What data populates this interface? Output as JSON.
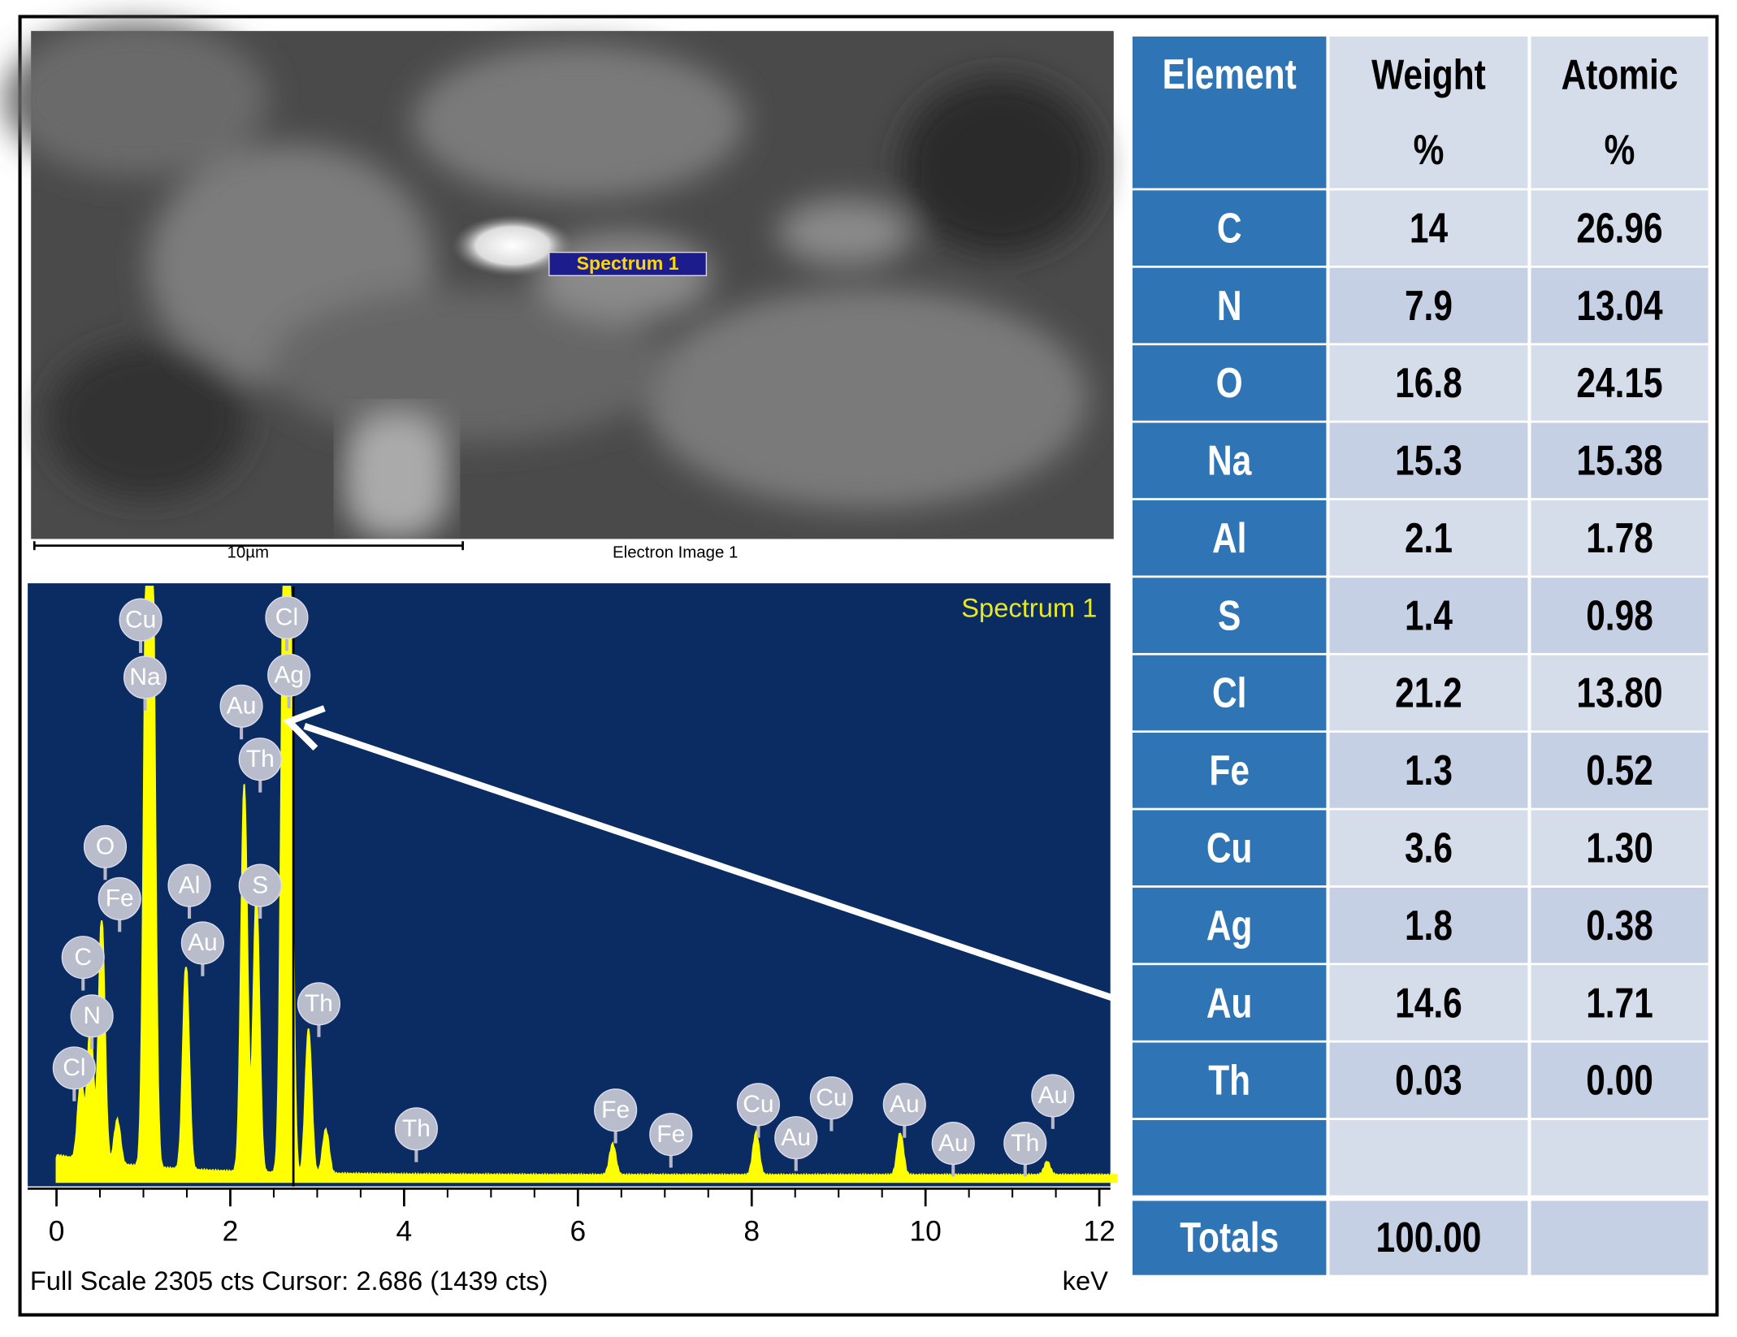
{
  "electron_image": {
    "spectrum_label": "Spectrum 1",
    "scale_bar": "10µm",
    "caption": "Electron Image 1"
  },
  "spectrum": {
    "title": "Spectrum 1",
    "x_ticks": [
      0,
      2,
      4,
      6,
      8,
      10,
      12
    ],
    "unit": "keV",
    "footer": "Full Scale 2305 cts Cursor: 2.686  (1439 cts)",
    "peak_labels": [
      "Cu",
      "Na",
      "Cl",
      "Ag",
      "Au",
      "Th",
      "O",
      "Fe",
      "Al",
      "S",
      "Au",
      "C",
      "N",
      "Cl",
      "Th",
      "Th",
      "Fe",
      "Fe",
      "Cu",
      "Au",
      "Cu",
      "Au",
      "Au",
      "Th",
      "Au"
    ]
  },
  "table": {
    "header": [
      "Element",
      "Weight %",
      "Atomic %"
    ],
    "rows": [
      [
        "C",
        "14",
        "26.96"
      ],
      [
        "N",
        "7.9",
        "13.04"
      ],
      [
        "O",
        "16.8",
        "24.15"
      ],
      [
        "Na",
        "15.3",
        "15.38"
      ],
      [
        "Al",
        "2.1",
        "1.78"
      ],
      [
        "S",
        "1.4",
        "0.98"
      ],
      [
        "Cl",
        "21.2",
        "13.80"
      ],
      [
        "Fe",
        "1.3",
        "0.52"
      ],
      [
        "Cu",
        "3.6",
        "1.30"
      ],
      [
        "Ag",
        "1.8",
        "0.38"
      ],
      [
        "Au",
        "14.6",
        "1.71"
      ],
      [
        "Th",
        "0.03",
        "0.00"
      ]
    ],
    "totals": [
      "Totals",
      "100.00"
    ]
  }
}
